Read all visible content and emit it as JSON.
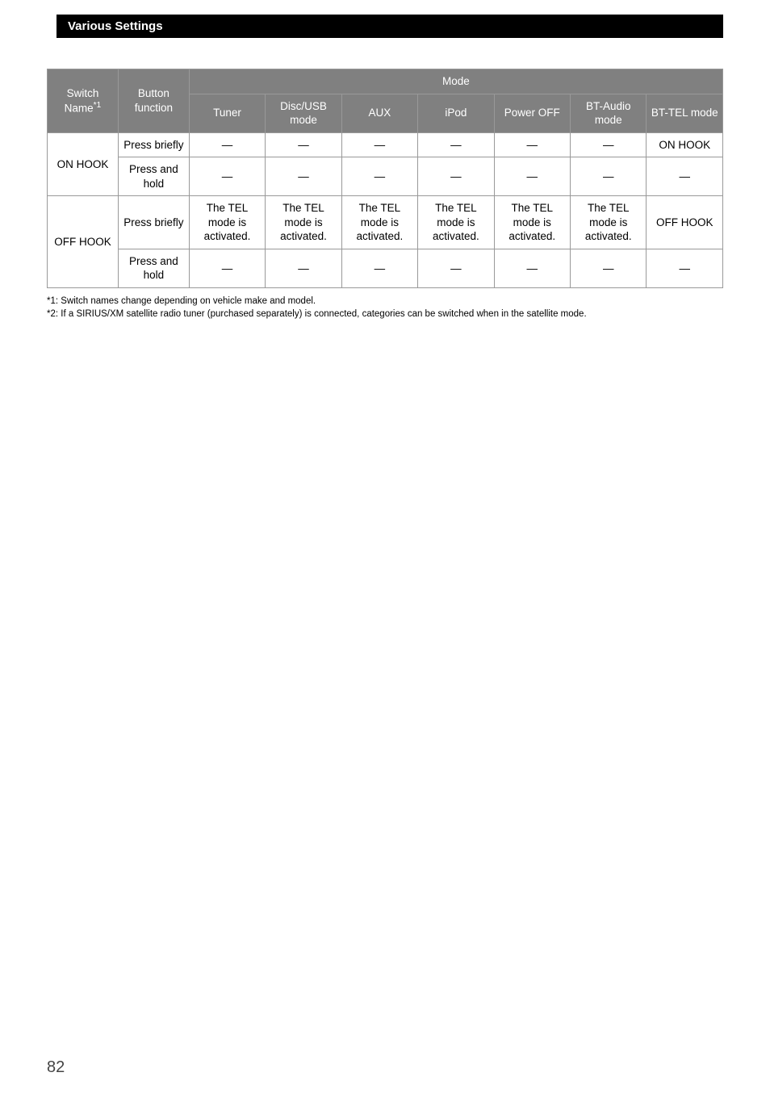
{
  "header": {
    "title": "Various Settings"
  },
  "table": {
    "colHeaders": {
      "switchName": "Switch Name",
      "switchNameSup": "*1",
      "buttonFunction": "Button function",
      "modeGroup": "Mode",
      "modeCols": [
        "Tuner",
        "Disc/USB mode",
        "AUX",
        "iPod",
        "Power OFF",
        "BT-Audio mode",
        "BT-TEL mode"
      ]
    },
    "rows": [
      {
        "switchName": "ON HOOK",
        "sub": [
          {
            "btn": "Press briefly",
            "cells": [
              "—",
              "—",
              "—",
              "—",
              "—",
              "—",
              "ON HOOK"
            ]
          },
          {
            "btn": "Press and hold",
            "cells": [
              "—",
              "—",
              "—",
              "—",
              "—",
              "—",
              "—"
            ]
          }
        ]
      },
      {
        "switchName": "OFF HOOK",
        "sub": [
          {
            "btn": "Press briefly",
            "cells": [
              "The TEL mode is activated.",
              "The TEL mode is activated.",
              "The TEL mode is activated.",
              "The TEL mode is activated.",
              "The TEL mode is activated.",
              "The TEL mode is activated.",
              "OFF HOOK"
            ]
          },
          {
            "btn": "Press and hold",
            "cells": [
              "—",
              "—",
              "—",
              "—",
              "—",
              "—",
              "—"
            ]
          }
        ]
      }
    ]
  },
  "footnotes": [
    {
      "label": "*1:",
      "text": "Switch names change depending on vehicle make and model."
    },
    {
      "label": "*2:",
      "text": "If a SIRIUS/XM satellite radio tuner (purchased separately) is connected, categories can be switched when in the satellite mode."
    }
  ],
  "pageNumber": "82",
  "colors": {
    "headerBg": "#000000",
    "headerFg": "#ffffff",
    "tableHeaderBg": "#808080",
    "tableHeaderFg": "#ffffff",
    "border": "#999999",
    "text": "#000000",
    "pageNum": "#444444"
  }
}
